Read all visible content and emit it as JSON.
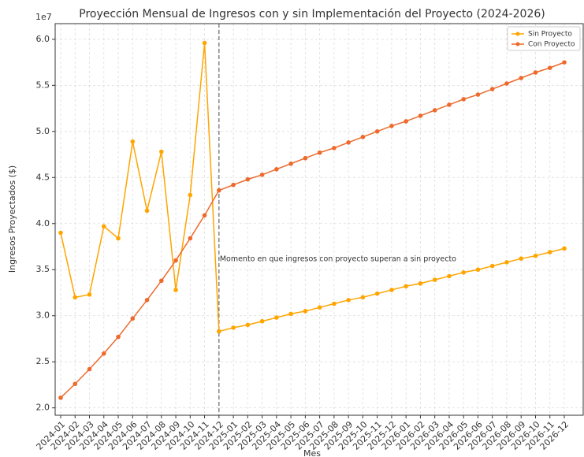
{
  "chart_data": {
    "type": "line",
    "title": "Proyección Mensual de Ingresos con y sin Implementación del Proyecto (2024-2026)",
    "x_label": "Mes",
    "y_label": "Ingresos Proyectados ($)",
    "y_offset_label": "1e7",
    "categories": [
      "2024-01",
      "2024-02",
      "2024-03",
      "2024-04",
      "2024-05",
      "2024-06",
      "2024-07",
      "2024-08",
      "2024-09",
      "2024-10",
      "2024-11",
      "2024-12",
      "2025-01",
      "2025-02",
      "2025-03",
      "2025-04",
      "2025-05",
      "2025-06",
      "2025-07",
      "2025-08",
      "2025-09",
      "2025-10",
      "2025-11",
      "2025-12",
      "2026-01",
      "2026-02",
      "2026-03",
      "2026-04",
      "2026-05",
      "2026-06",
      "2026-07",
      "2026-08",
      "2026-09",
      "2026-10",
      "2026-11",
      "2026-12"
    ],
    "series": [
      {
        "name": "Sin Proyecto",
        "color": "#ffa500",
        "values": [
          3.9,
          3.2,
          3.23,
          3.97,
          3.84,
          4.89,
          4.14,
          4.78,
          3.28,
          4.31,
          5.96,
          2.83,
          2.87,
          2.9,
          2.94,
          2.98,
          3.02,
          3.05,
          3.09,
          3.13,
          3.17,
          3.2,
          3.24,
          3.28,
          3.32,
          3.35,
          3.39,
          3.43,
          3.47,
          3.5,
          3.54,
          3.58,
          3.62,
          3.65,
          3.69,
          3.73
        ]
      },
      {
        "name": "Con Proyecto",
        "color": "#ee6a2c",
        "values": [
          2.11,
          2.26,
          2.42,
          2.59,
          2.77,
          2.97,
          3.17,
          3.38,
          3.6,
          3.84,
          4.09,
          4.36,
          4.42,
          4.48,
          4.53,
          4.59,
          4.65,
          4.71,
          4.77,
          4.82,
          4.88,
          4.94,
          5.0,
          5.06,
          5.11,
          5.17,
          5.23,
          5.29,
          5.35,
          5.4,
          5.46,
          5.52,
          5.58,
          5.64,
          5.69,
          5.75
        ]
      }
    ],
    "ylim": [
      1.92,
      6.17
    ],
    "yticks": [
      {
        "value": 2,
        "label": "2.0"
      },
      2.5,
      {
        "value": 3,
        "label": "3.0"
      },
      3.5,
      {
        "value": 4,
        "label": "4.0"
      },
      4.5,
      {
        "value": 5,
        "label": "5.0"
      },
      5.5,
      {
        "value": 6,
        "label": "6.0"
      }
    ],
    "grid": true,
    "legend": "upper right",
    "annotation": {
      "text": "Momento en que ingresos con proyecto superan a sin proyecto",
      "x": "2024-12"
    }
  }
}
